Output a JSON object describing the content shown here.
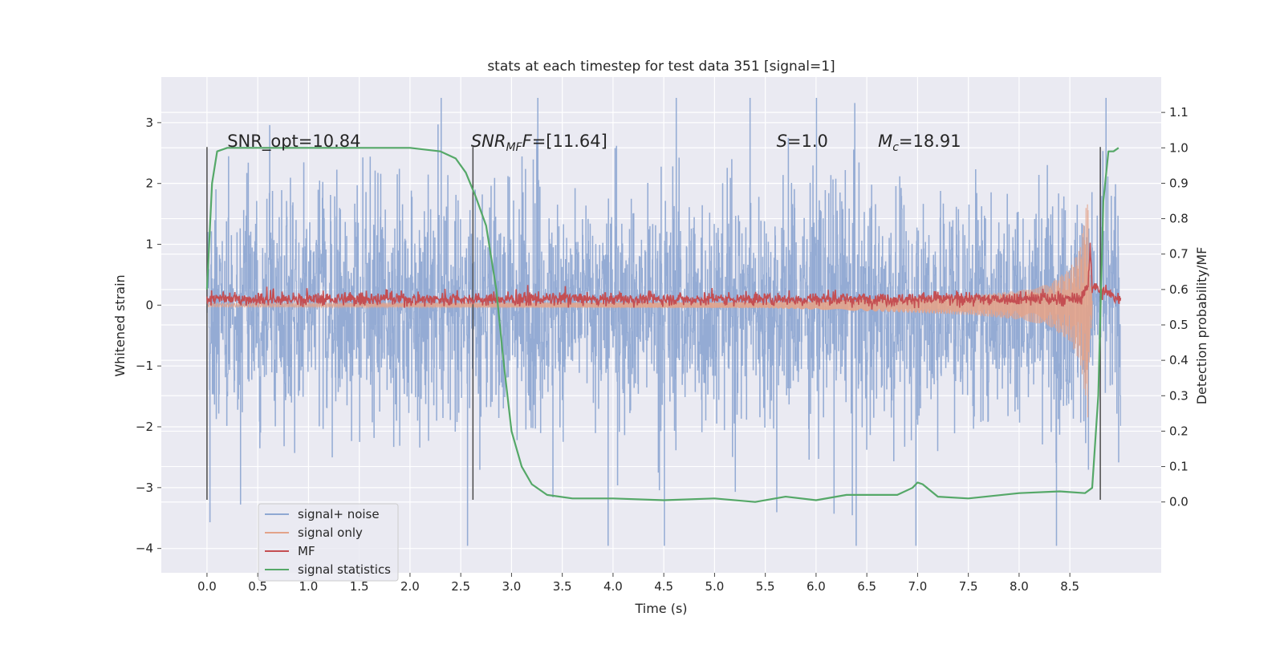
{
  "chart_data": {
    "type": "line",
    "title": "stats at each timestep for test data 351 [signal=1]",
    "xlabel": "Time (s)",
    "ylabel": "Whitened strain",
    "ylabel_right": "Detection probability/MF",
    "xlim": [
      -0.45,
      9.4
    ],
    "ylim": [
      -4.4,
      3.75
    ],
    "ylim_right": [
      -0.2,
      1.2
    ],
    "x_ticks": [
      "0.0",
      "0.5",
      "1.0",
      "1.5",
      "2.0",
      "2.5",
      "3.0",
      "3.5",
      "4.0",
      "4.5",
      "5.0",
      "5.5",
      "6.0",
      "6.5",
      "7.0",
      "7.5",
      "8.0",
      "8.5"
    ],
    "y_ticks": [
      "3",
      "2",
      "1",
      "0",
      "−1",
      "−2",
      "−3",
      "−4"
    ],
    "y_ticks_right": [
      "1.1",
      "1.0",
      "0.9",
      "0.8",
      "0.7",
      "0.6",
      "0.5",
      "0.4",
      "0.3",
      "0.2",
      "0.1",
      "0.0"
    ],
    "grid": true,
    "legend_position": "lower-left",
    "annotations": [
      {
        "prefix": "SNR_opt=10.84",
        "sub": "",
        "suffix": ""
      },
      {
        "prefix": "SNR",
        "sub": "MF",
        "suffix": "F=[11.64]"
      },
      {
        "prefix": "S",
        "sub": "",
        "suffix": "=1.0"
      },
      {
        "prefix": "M",
        "sub": "c",
        "suffix": "=18.91"
      }
    ],
    "vertical_markers_x": [
      0.0,
      2.62,
      8.8
    ],
    "series": [
      {
        "name": "signal+ noise",
        "color": "#8fa8d2",
        "axis": "left",
        "description_range": [
          -4.0,
          3.4
        ]
      },
      {
        "name": "signal only",
        "color": "#e3a38a",
        "axis": "left",
        "x": [
          0.0,
          5.5,
          6.5,
          7.5,
          8.0,
          8.3,
          8.5,
          8.6,
          8.65,
          8.68,
          8.7,
          9.0
        ],
        "amplitude": [
          0.03,
          0.05,
          0.1,
          0.16,
          0.24,
          0.35,
          0.6,
          0.95,
          1.5,
          1.9,
          0.4,
          0.0
        ]
      },
      {
        "name": "MF",
        "color": "#c44e52",
        "axis": "left",
        "x": [
          0.0,
          8.6,
          8.68,
          8.7,
          8.72,
          9.0
        ],
        "y": [
          0.1,
          0.1,
          0.3,
          1.0,
          0.3,
          0.1
        ]
      },
      {
        "name": "signal statistics",
        "color": "#55a868",
        "axis": "right",
        "x": [
          0.0,
          0.05,
          0.1,
          0.2,
          0.4,
          1.0,
          2.0,
          2.3,
          2.45,
          2.55,
          2.65,
          2.75,
          2.85,
          2.92,
          3.0,
          3.1,
          3.2,
          3.35,
          3.6,
          4.0,
          4.5,
          5.0,
          5.4,
          5.7,
          6.0,
          6.3,
          6.5,
          6.8,
          6.95,
          7.0,
          7.05,
          7.2,
          7.5,
          8.0,
          8.4,
          8.65,
          8.72,
          8.78,
          8.83,
          8.88,
          8.93,
          8.98
        ],
        "y": [
          0.6,
          0.9,
          0.99,
          1.0,
          1.0,
          1.0,
          1.0,
          0.99,
          0.97,
          0.93,
          0.86,
          0.78,
          0.6,
          0.4,
          0.2,
          0.1,
          0.05,
          0.02,
          0.01,
          0.01,
          0.005,
          0.01,
          0.0,
          0.015,
          0.005,
          0.02,
          0.02,
          0.02,
          0.04,
          0.055,
          0.05,
          0.015,
          0.01,
          0.025,
          0.03,
          0.025,
          0.04,
          0.3,
          0.85,
          0.99,
          0.99,
          1.0
        ]
      }
    ]
  }
}
